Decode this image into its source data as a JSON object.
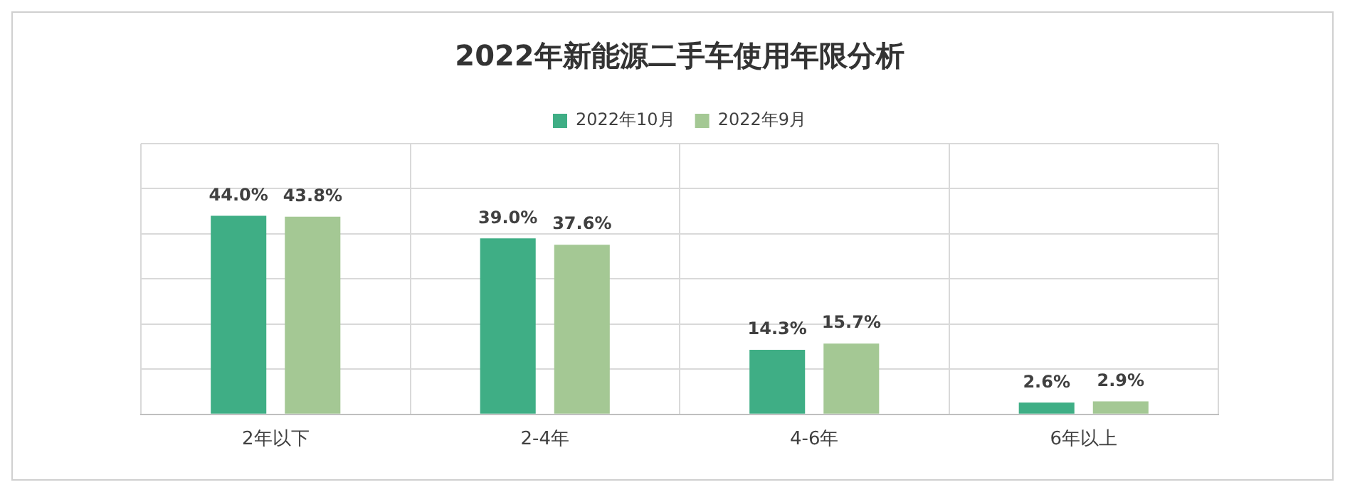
{
  "chart_data": {
    "type": "bar",
    "title": "2022年新能源二手车使用年限分析",
    "categories": [
      "2年以下",
      "2-4年",
      "4-6年",
      "6年以上"
    ],
    "series": [
      {
        "name": "2022年10月",
        "color": "#3fae85",
        "values": [
          44.0,
          39.0,
          14.3,
          2.6
        ],
        "value_labels": [
          "44.0%",
          "39.0%",
          "14.3%",
          "2.6%"
        ]
      },
      {
        "name": "2022年9月",
        "color": "#a4c894",
        "values": [
          43.8,
          37.6,
          15.7,
          2.9
        ],
        "value_labels": [
          "43.8%",
          "37.6%",
          "15.7%",
          "2.9%"
        ]
      }
    ],
    "ylim": [
      0,
      60
    ],
    "yticks": [
      {
        "value": 0,
        "label": null
      },
      {
        "value": 10,
        "label": null
      },
      {
        "value": 20,
        "label": null
      },
      {
        "value": 30,
        "label": null
      },
      {
        "value": 40,
        "label": null
      },
      {
        "value": 50,
        "label": null
      },
      {
        "value": 60,
        "label": null
      }
    ],
    "tick_labels": "x",
    "grid": true,
    "legend": "top"
  }
}
